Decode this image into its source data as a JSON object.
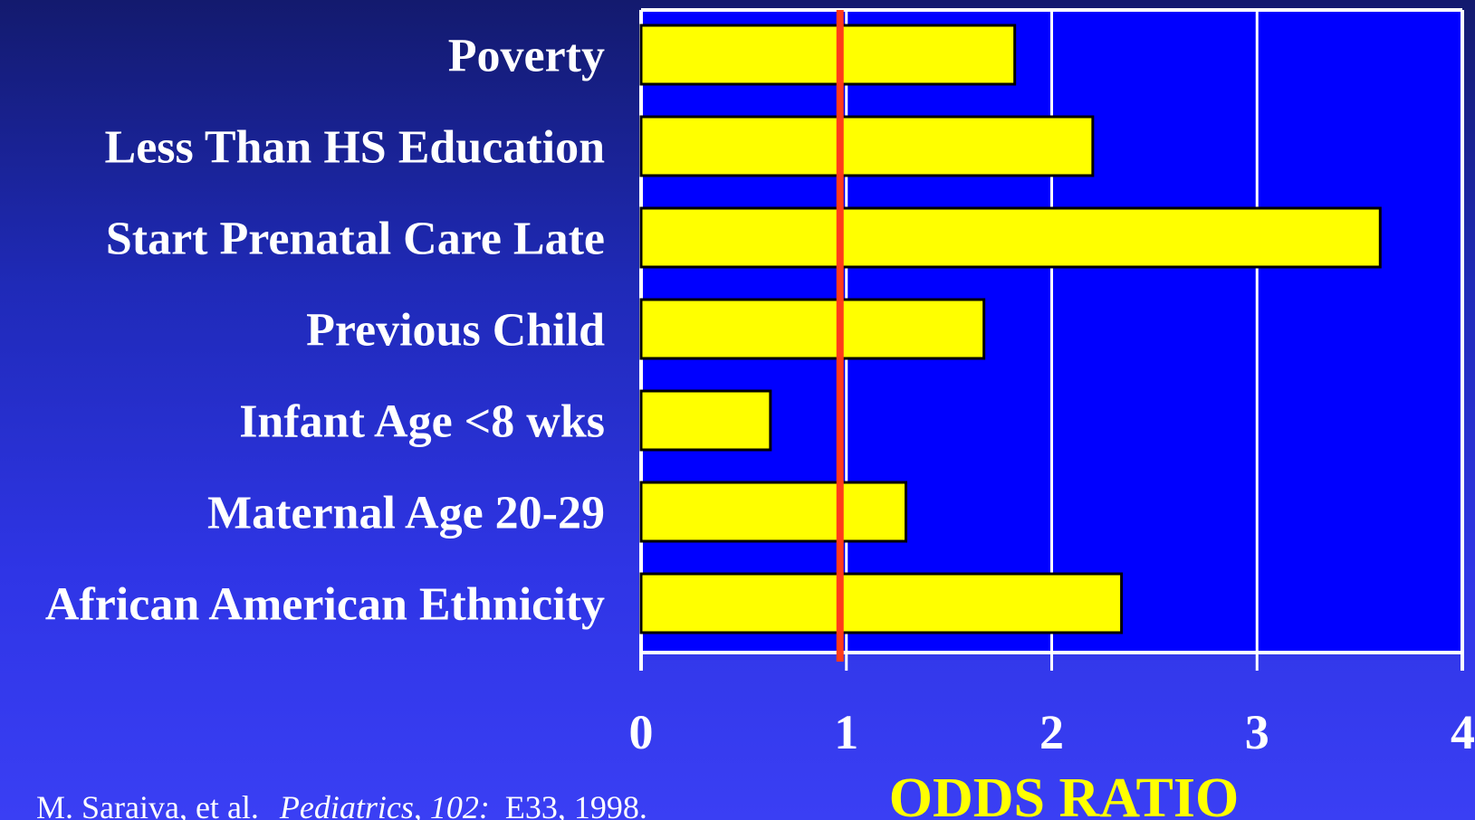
{
  "chart_data": {
    "type": "bar",
    "orientation": "horizontal",
    "categories": [
      "Poverty",
      "Less Than HS Education",
      "Start Prenatal Care Late",
      "Previous Child",
      "Infant Age <8 wks",
      "Maternal Age 20-29",
      "African American Ethnicity"
    ],
    "values": [
      1.82,
      2.2,
      3.6,
      1.67,
      0.63,
      1.29,
      2.34
    ],
    "xlabel": "ODDS RATIO",
    "ylabel": "",
    "xlim": [
      0,
      4
    ],
    "xticks": [
      "0",
      "1",
      "2",
      "3",
      "4"
    ],
    "reference_line": 1,
    "grid": true,
    "colors": {
      "plot_background": "#0000ff",
      "bar_fill": "#ffff00",
      "bar_stroke": "#000000",
      "reference_line": "#ff3b1a",
      "grid": "#ffffff",
      "axis_title": "#ffff00",
      "text": "#ffffff"
    }
  },
  "citation": {
    "authors": "M. Saraiva, et al.",
    "journal": "Pediatrics, 102:",
    "details": "E33, 1998."
  }
}
